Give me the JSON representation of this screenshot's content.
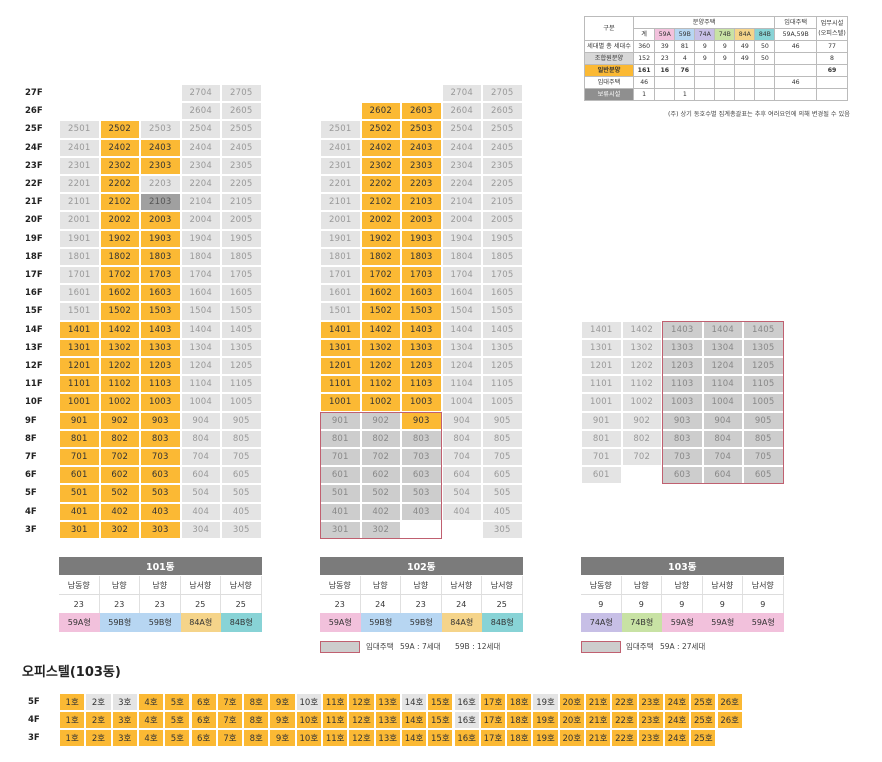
{
  "colors": {
    "sale": "#fbb934",
    "other": "#e4e4e4",
    "rental": "#cdcdcd",
    "dark": "#a0a0a0",
    "c59A": "#f2c1dc",
    "c59B": "#b7d6f2",
    "c74A": "#c7bfe6",
    "c74B": "#c8e2a4",
    "c84A": "#f5d48a",
    "c84B": "#88d3d6",
    "bar": "#7b7b7b"
  },
  "summary": {
    "header_gubun": "구분",
    "header_sale": "분양주택",
    "header_rental": "임대주택",
    "header_biz": "업무시설 (오피스텔)",
    "sub_total": "계",
    "types": [
      "59A",
      "59B",
      "74A",
      "74B",
      "84A",
      "84B"
    ],
    "rental_types": "59A,59B",
    "rows": [
      {
        "label": "세대별 총 세대수",
        "vals": [
          "360",
          "39",
          "81",
          "9",
          "9",
          "49",
          "50",
          "46",
          "77"
        ],
        "style": "plain"
      },
      {
        "label": "조합원분양",
        "vals": [
          "152",
          "23",
          "4",
          "9",
          "9",
          "49",
          "50",
          "",
          "8"
        ],
        "style": "lgray"
      },
      {
        "label": "일반분양",
        "vals": [
          "161",
          "16",
          "76",
          "",
          "",
          "",
          "",
          "",
          "69"
        ],
        "style": "sale"
      },
      {
        "label": "임대주택",
        "vals": [
          "46",
          "",
          "",
          "",
          "",
          "",
          "",
          "46",
          ""
        ],
        "style": "plain"
      },
      {
        "label": "보류시설",
        "vals": [
          "1",
          "",
          "1",
          "",
          "",
          "",
          "",
          "",
          ""
        ],
        "style": "dgray"
      }
    ],
    "note": "(주) 상기 동호수별 집계총괄표는 추후 여러요인에 의해 변경될 수 있음"
  },
  "floors": [
    "27F",
    "26F",
    "25F",
    "24F",
    "23F",
    "22F",
    "21F",
    "20F",
    "19F",
    "18F",
    "17F",
    "16F",
    "15F",
    "14F",
    "13F",
    "12F",
    "11F",
    "10F",
    "9F",
    "8F",
    "7F",
    "6F",
    "5F",
    "4F",
    "3F"
  ],
  "b101": {
    "name": "101동",
    "dirs": [
      "남동향",
      "남향",
      "남향",
      "남서향",
      "남서향"
    ],
    "sizes": [
      "23",
      "23",
      "23",
      "25",
      "25"
    ],
    "types": [
      "59A형",
      "59B형",
      "59B형",
      "84A형",
      "84B형"
    ]
  },
  "b102": {
    "name": "102동",
    "dirs": [
      "남동향",
      "남향",
      "남향",
      "남서향",
      "남서향"
    ],
    "sizes": [
      "23",
      "24",
      "23",
      "24",
      "25"
    ],
    "types": [
      "59A형",
      "59B형",
      "59B형",
      "84A형",
      "84B형"
    ],
    "legend_label": "임대주택",
    "legend_a": "59A : 7세대",
    "legend_b": "59B : 12세대"
  },
  "b103": {
    "name": "103동",
    "dirs": [
      "남동향",
      "남향",
      "남향",
      "남서향",
      "남서향"
    ],
    "sizes": [
      "9",
      "9",
      "9",
      "9",
      "9"
    ],
    "types": [
      "74A형",
      "74B형",
      "59A형",
      "59A형",
      "59A형"
    ],
    "legend_label": "임대주택",
    "legend_a": "59A : 27세대"
  },
  "officetel": {
    "title": "오피스텔(103동)",
    "floors": [
      "5F",
      "4F",
      "3F"
    ]
  }
}
